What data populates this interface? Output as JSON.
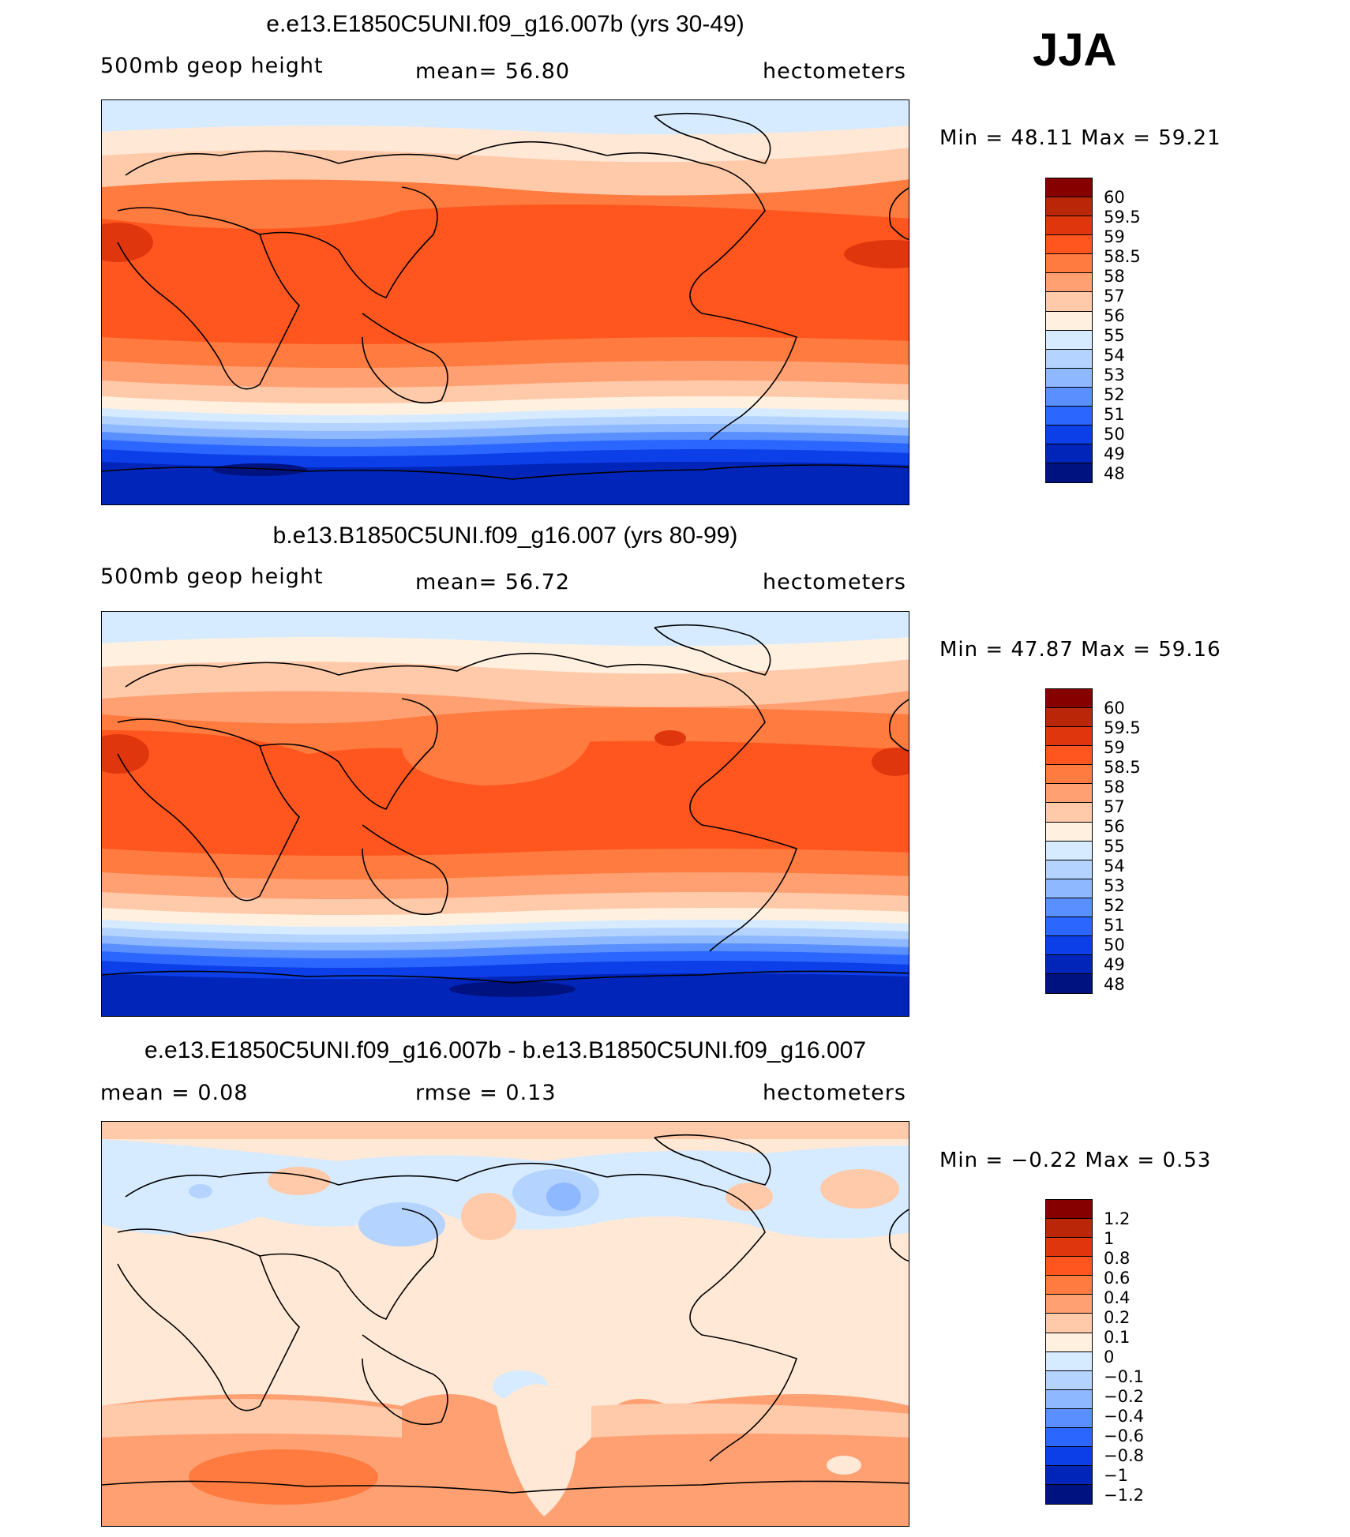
{
  "season": "JJA",
  "panels": [
    {
      "id": "top",
      "title": "e.e13.E1850C5UNI.f09_g16.007b (yrs 30-49)",
      "variable": "500mb geop height",
      "stat": "mean=   56.80",
      "units": "hectometers",
      "minmax": "Min =   48.11  Max =   59.21",
      "levels": [
        "60",
        "59.5",
        "59",
        "58.5",
        "58",
        "57",
        "56",
        "55",
        "54",
        "53",
        "52",
        "51",
        "50",
        "49",
        "48"
      ],
      "colors": [
        "#870000",
        "#b92708",
        "#e0360d",
        "#ff561f",
        "#ff7b3f",
        "#ffa073",
        "#ffcaaa",
        "#fff0df",
        "#d6ebff",
        "#b4d3ff",
        "#8eb8ff",
        "#5a8fff",
        "#2a66ff",
        "#0d3fe8",
        "#0025b8",
        "#00127f"
      ]
    },
    {
      "id": "middle",
      "title": "b.e13.B1850C5UNI.f09_g16.007 (yrs 80-99)",
      "variable": "500mb geop height",
      "stat": "mean=   56.72",
      "units": "hectometers",
      "minmax": "Min =   47.87  Max =   59.16",
      "levels": [
        "60",
        "59.5",
        "59",
        "58.5",
        "58",
        "57",
        "56",
        "55",
        "54",
        "53",
        "52",
        "51",
        "50",
        "49",
        "48"
      ],
      "colors": [
        "#870000",
        "#b92708",
        "#e0360d",
        "#ff561f",
        "#ff7b3f",
        "#ffa073",
        "#ffcaaa",
        "#fff0df",
        "#d6ebff",
        "#b4d3ff",
        "#8eb8ff",
        "#5a8fff",
        "#2a66ff",
        "#0d3fe8",
        "#0025b8",
        "#00127f"
      ]
    },
    {
      "id": "bottom",
      "title": "e.e13.E1850C5UNI.f09_g16.007b - b.e13.B1850C5UNI.f09_g16.007",
      "mean_label": "mean =     0.08",
      "stat": "rmse =     0.13",
      "units": "hectometers",
      "minmax": "Min =   −0.22  Max =     0.53",
      "levels": [
        "1.2",
        "1",
        "0.8",
        "0.6",
        "0.4",
        "0.2",
        "0.1",
        "0",
        "−0.1",
        "−0.2",
        "−0.4",
        "−0.6",
        "−0.8",
        "−1",
        "−1.2"
      ],
      "colors": [
        "#870000",
        "#b92708",
        "#e0360d",
        "#ff561f",
        "#ff7b3f",
        "#ffa073",
        "#ffcaaa",
        "#fff0df",
        "#d6ebff",
        "#b4d3ff",
        "#8eb8ff",
        "#5a8fff",
        "#2a66ff",
        "#0d3fe8",
        "#0025b8",
        "#00127f"
      ]
    }
  ]
}
